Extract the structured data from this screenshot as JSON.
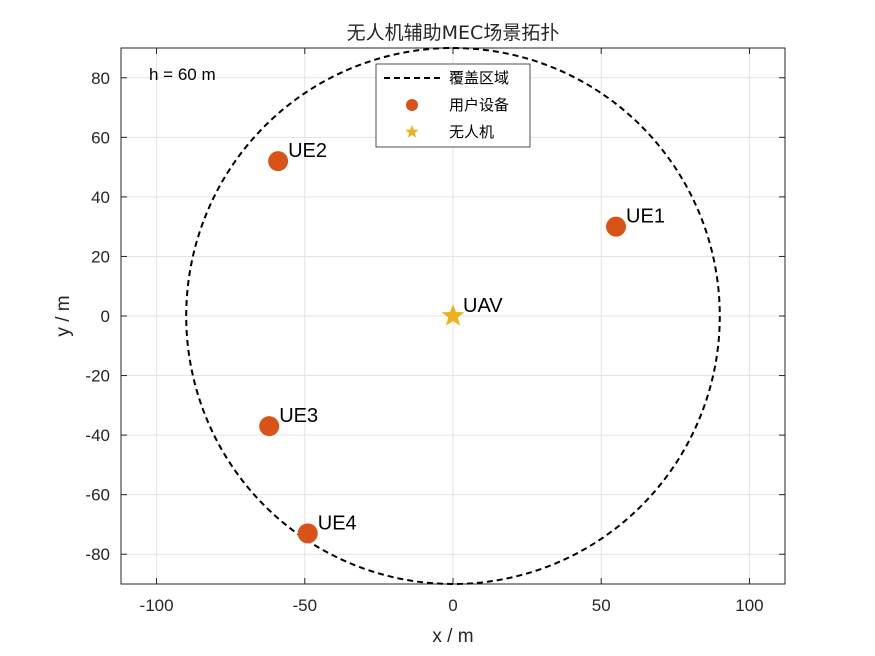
{
  "chart_data": {
    "type": "scatter",
    "title": "无人机辅助MEC场景拓扑",
    "xlabel": "x / m",
    "ylabel": "y / m",
    "xlim": [
      -112,
      112
    ],
    "ylim": [
      -90,
      90
    ],
    "xticks": [
      -100,
      -50,
      0,
      50,
      100
    ],
    "yticks": [
      -80,
      -60,
      -40,
      -20,
      0,
      20,
      40,
      60,
      80
    ],
    "grid": true,
    "legend_position": "top-center",
    "note": "h = 60 m",
    "coverage": {
      "name": "覆盖区域",
      "center": [
        0,
        0
      ],
      "radius": 90,
      "color": "#000000",
      "style": "dashed"
    },
    "users": {
      "name": "用户设备",
      "color": "#D95319",
      "points": [
        {
          "label": "UE1",
          "x": 55,
          "y": 30
        },
        {
          "label": "UE2",
          "x": -59,
          "y": 52
        },
        {
          "label": "UE3",
          "x": -62,
          "y": -37
        },
        {
          "label": "UE4",
          "x": -49,
          "y": -73
        }
      ]
    },
    "uav": {
      "name": "无人机",
      "label": "UAV",
      "x": 0,
      "y": 0,
      "color": "#EDB120"
    }
  }
}
